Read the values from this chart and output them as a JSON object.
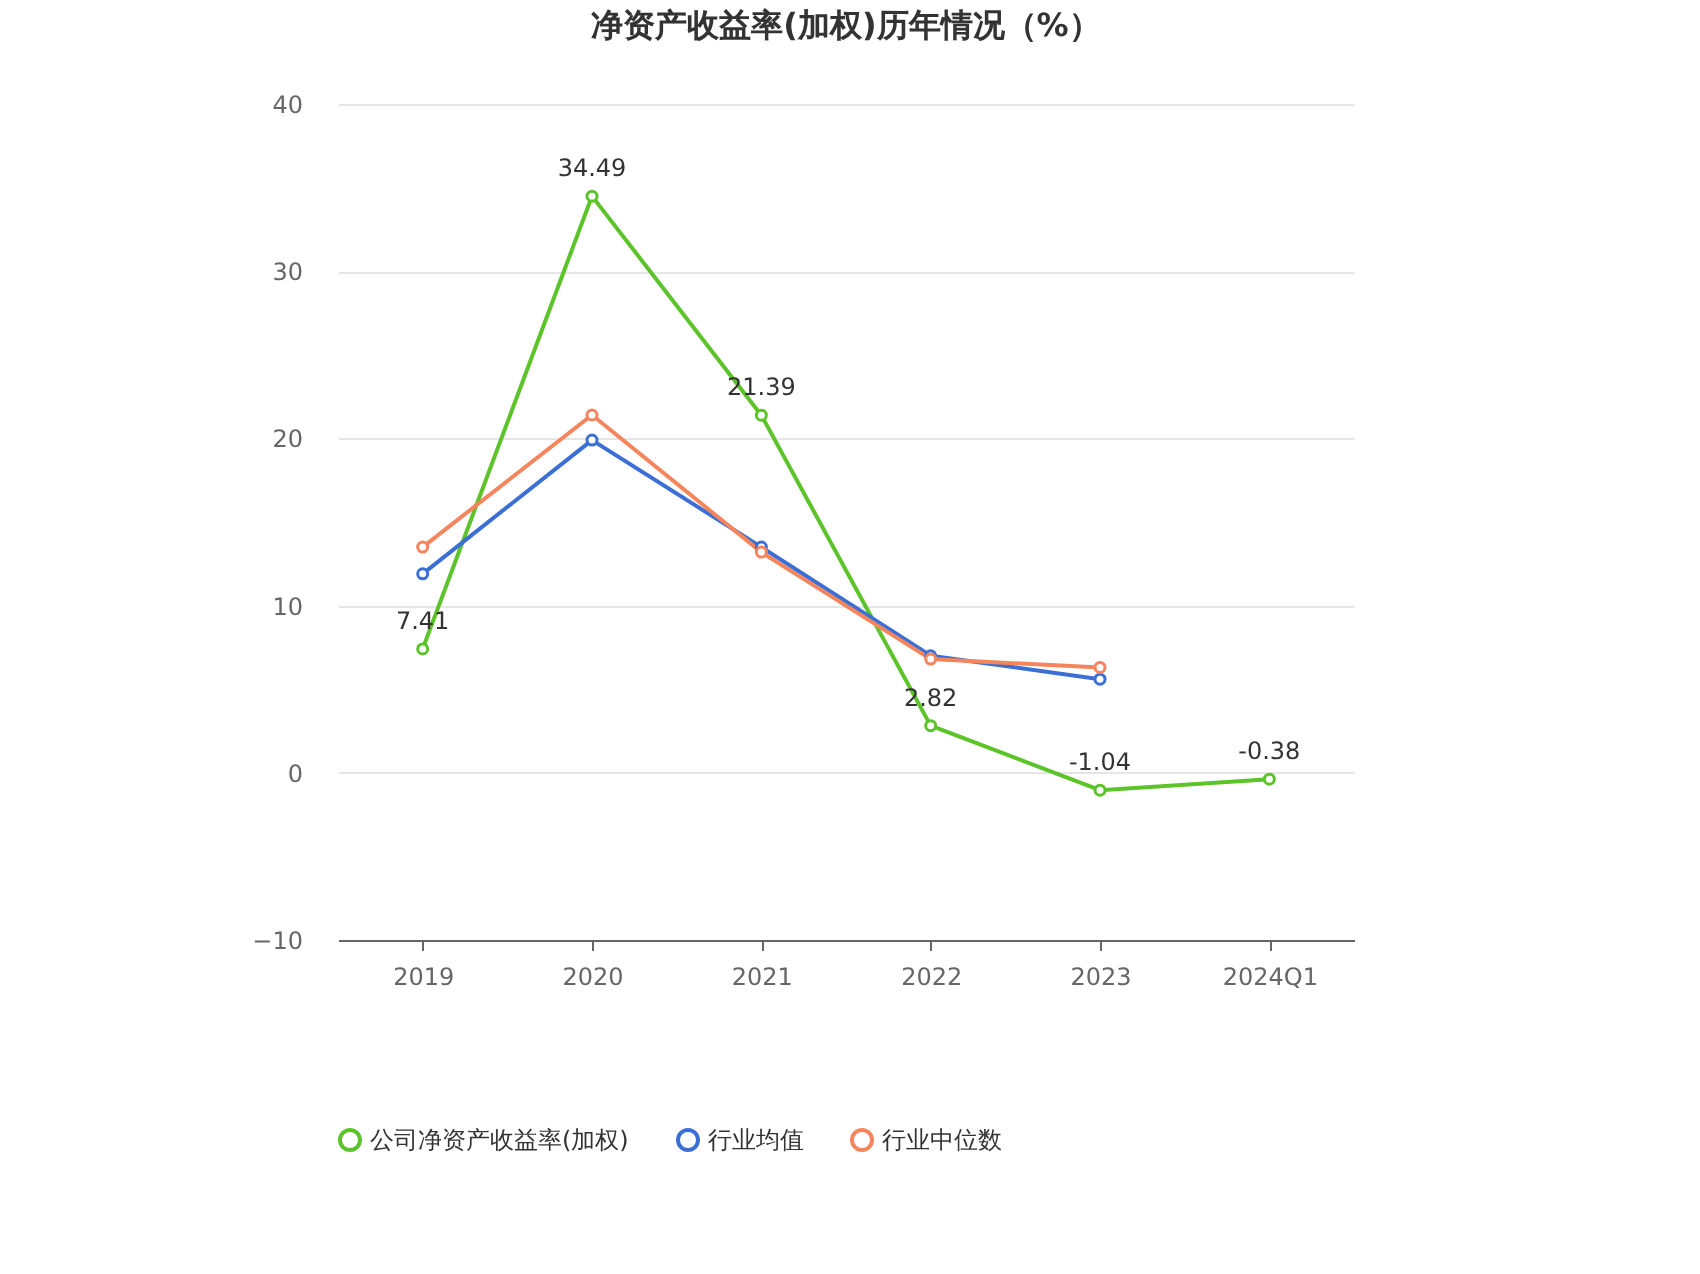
{
  "chart_data": {
    "type": "line",
    "title": "净资产收益率(加权)历年情况（%）",
    "categories": [
      "2019",
      "2020",
      "2021",
      "2022",
      "2023",
      "2024Q1"
    ],
    "series": [
      {
        "name": "公司净资产收益率(加权)",
        "color": "#5cc42a",
        "values": [
          7.41,
          34.49,
          21.39,
          2.82,
          -1.04,
          -0.38
        ],
        "value_labels": [
          "7.41",
          "34.49",
          "21.39",
          "2.82",
          "-1.04",
          "-0.38"
        ]
      },
      {
        "name": "行业均值",
        "color": "#3b6fd6",
        "values": [
          11.9,
          19.9,
          13.5,
          7.0,
          5.6,
          null
        ]
      },
      {
        "name": "行业中位数",
        "color": "#f5855c",
        "values": [
          13.5,
          21.4,
          13.2,
          6.8,
          6.3,
          null
        ]
      }
    ],
    "ylim": [
      -10,
      40
    ],
    "yticks": [
      -10,
      0,
      10,
      20,
      30,
      40
    ],
    "grid": "y",
    "legend": "bottom",
    "marker": "circle",
    "line_style": "solid"
  }
}
